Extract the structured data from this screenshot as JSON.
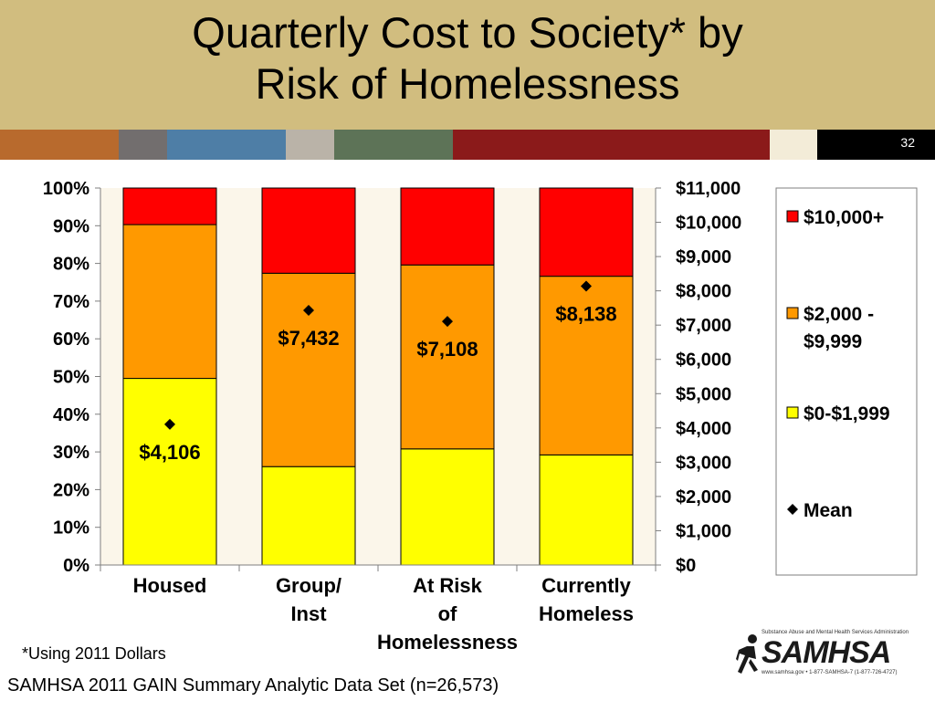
{
  "title": {
    "line1": "Quarterly Cost to Society* by",
    "line2": "Risk of Homelessness"
  },
  "slide_number": "32",
  "strip_colors": [
    "#b86a2d",
    "#726e6e",
    "#4e7ea6",
    "#bab3a8",
    "#5d7357",
    "#8b1a1a",
    "#f3ecd8",
    "#000000"
  ],
  "chart_data": {
    "type": "bar",
    "stacked": true,
    "categories": [
      "Housed",
      "Group/ Inst",
      "At Risk of Homelessness",
      "Currently Homeless"
    ],
    "category_lines": [
      [
        "Housed"
      ],
      [
        "Group/",
        "Inst"
      ],
      [
        "At Risk",
        "of",
        "Homelessness"
      ],
      [
        "Currently",
        "Homeless"
      ]
    ],
    "series": [
      {
        "name": "$0-$1,999",
        "color": "#ffff00",
        "values": [
          49.5,
          26.1,
          30.8,
          29.2
        ]
      },
      {
        "name": "$2,000 - $9,999",
        "color": "#ff9900",
        "values": [
          40.8,
          51.3,
          48.8,
          47.4
        ]
      },
      {
        "name": "$10,000+",
        "color": "#ff0000",
        "values": [
          9.7,
          22.6,
          20.4,
          23.4
        ]
      }
    ],
    "mean": {
      "name": "Mean",
      "values": [
        4106,
        7432,
        7108,
        8138
      ],
      "labels": [
        "$4,106",
        "$7,432",
        "$7,108",
        "$8,138"
      ]
    },
    "ylim_left": [
      0,
      100
    ],
    "yticks_left": [
      "0%",
      "10%",
      "20%",
      "30%",
      "40%",
      "50%",
      "60%",
      "70%",
      "80%",
      "90%",
      "100%"
    ],
    "ylim_right": [
      0,
      11000
    ],
    "yticks_right": [
      "$0",
      "$1,000",
      "$2,000",
      "$3,000",
      "$4,000",
      "$5,000",
      "$6,000",
      "$7,000",
      "$8,000",
      "$9,000",
      "$10,000",
      "$11,000"
    ],
    "legend_entries": [
      "$10,000+",
      "$2,000 - $9,999",
      "$0-$1,999",
      "Mean"
    ],
    "legend_lines": [
      [
        "$10,000+"
      ],
      [
        "$2,000 -",
        "$9,999"
      ],
      [
        "$0-$1,999"
      ],
      [
        "Mean"
      ]
    ],
    "legend_position": "right",
    "grid": false
  },
  "footnote": "*Using 2011 Dollars",
  "source": "SAMHSA 2011 GAIN Summary Analytic Data Set (n=26,573)",
  "logo": {
    "wordmark": "SAMHSA",
    "tagline": "Substance Abuse and Mental Health Services Administration",
    "contact": "www.samhsa.gov • 1-877-SAMHSA-7 (1-877-726-4727)"
  }
}
